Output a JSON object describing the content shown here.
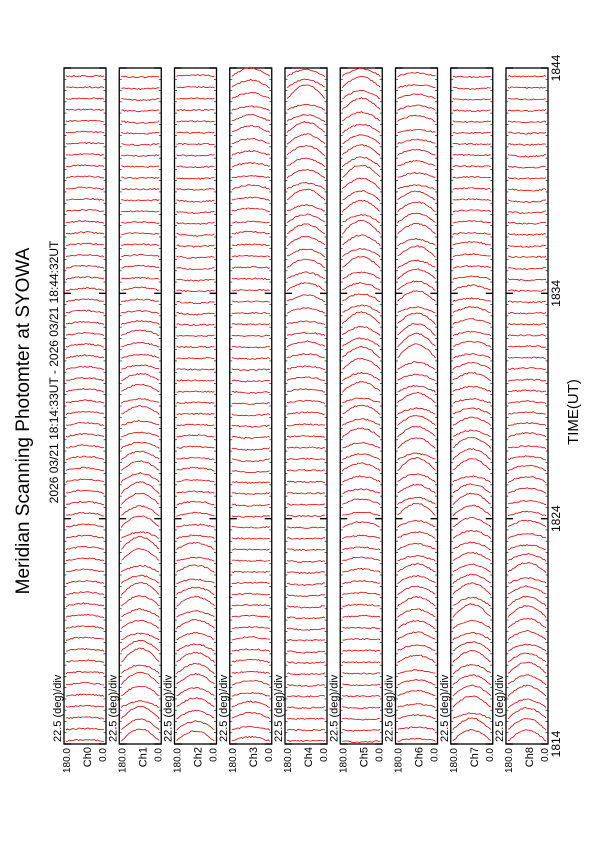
{
  "title": "Meridian Scanning Photomter at SYOWA",
  "time_range": "2026 03/21 18:14:33UT - 2026 03/21 18:44:32UT",
  "xlabel": "TIME(UT)",
  "scale_label": "22.5 (deg)/div",
  "angle_ticks": [
    "180.0",
    "0.0"
  ],
  "colors": {
    "trace": "#dd0000",
    "frame": "#000000",
    "marker": "#000000"
  },
  "chart_data": {
    "type": "line",
    "orientation": "rotated-90-ccw",
    "x_ticks": [
      "1814",
      "1824",
      "1834",
      "1844"
    ],
    "xlim": [
      "1814",
      "1844"
    ],
    "ylim": [
      0,
      180
    ],
    "panels": [
      {
        "channel": "CH1",
        "label": "Ch0"
      },
      {
        "channel": "CH2",
        "label": "Ch1"
      },
      {
        "channel": "CH3",
        "label": "Ch2"
      },
      {
        "channel": "CH4",
        "label": "Ch3"
      },
      {
        "channel": "CH5",
        "label": "Ch4"
      },
      {
        "channel": "CH6",
        "label": "Ch5"
      },
      {
        "channel": "CH7",
        "label": "Ch6"
      },
      {
        "channel": "CH8",
        "label": "Ch7"
      },
      {
        "channel": "CH9",
        "label": "Ch8"
      }
    ],
    "scans_per_panel": 60
  }
}
